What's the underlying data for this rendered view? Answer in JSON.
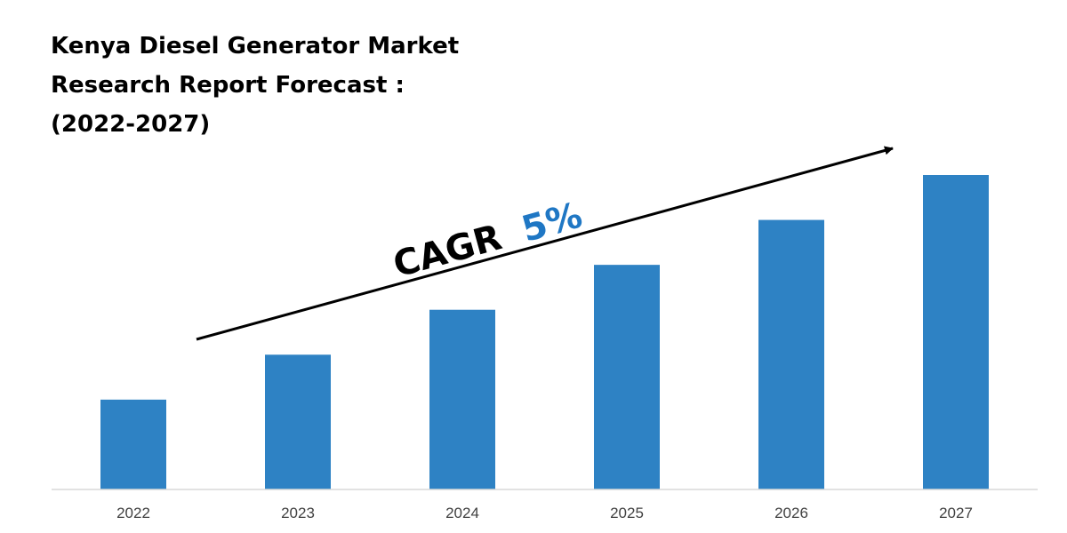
{
  "title_lines": [
    "Kenya Diesel Generator Market",
    "Research Report Forecast :",
    "(2022-2027)"
  ],
  "cagr": {
    "label": "CAGR",
    "value": "5%",
    "label_color": "#000000",
    "value_color": "#1f77c4"
  },
  "colors": {
    "bar": "#2e82c4",
    "axis": "#d9d9d9",
    "arrow": "#000000"
  },
  "chart_data": {
    "type": "bar",
    "categories": [
      "2022",
      "2023",
      "2024",
      "2025",
      "2026",
      "2027"
    ],
    "values": [
      1.0,
      1.5,
      2.0,
      2.5,
      3.0,
      3.5
    ],
    "ylim": [
      0,
      3.5
    ],
    "grid": false,
    "legend": "none"
  }
}
